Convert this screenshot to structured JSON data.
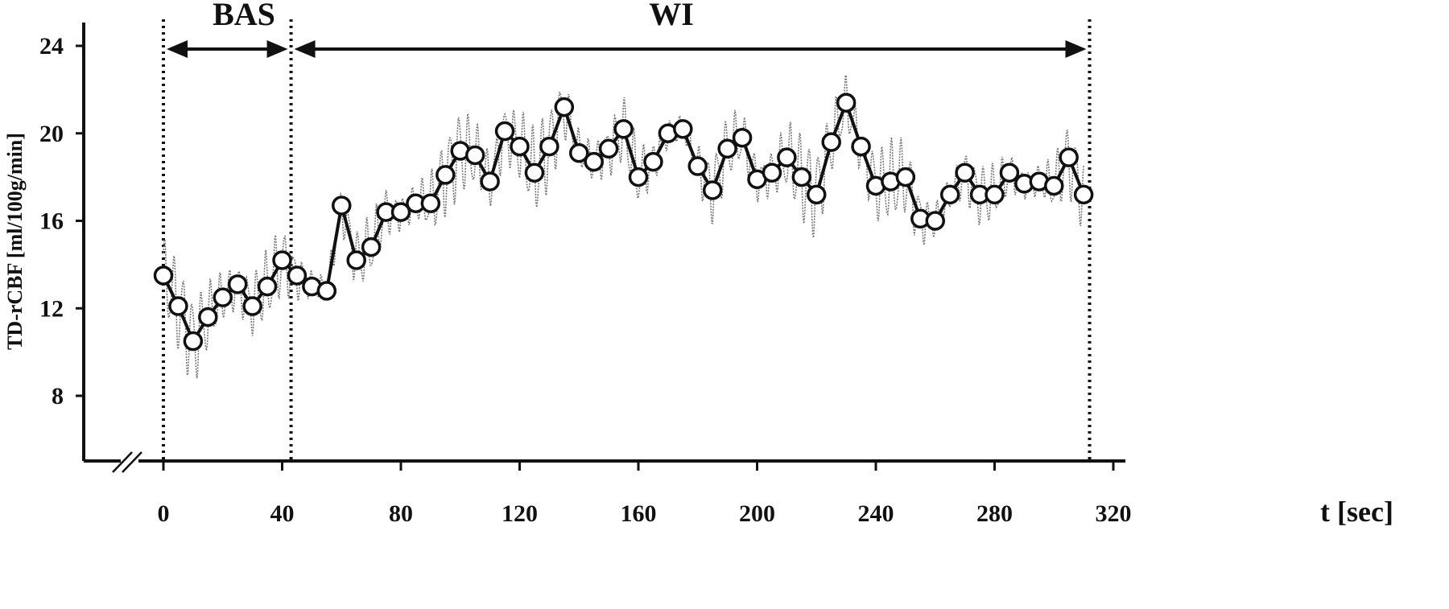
{
  "chart_data": {
    "type": "line",
    "title": "",
    "xlabel": "t [sec]",
    "ylabel": "TD-rCBF [ml/100g/min]",
    "xlim": [
      -30,
      325
    ],
    "ylim": [
      5,
      25
    ],
    "x_ticks": [
      0,
      40,
      80,
      120,
      160,
      200,
      240,
      280,
      320
    ],
    "y_ticks": [
      8,
      12,
      16,
      20,
      24
    ],
    "axis_break": "x",
    "grid": false,
    "phases": [
      {
        "label": "BAS",
        "start": 0,
        "end": 43
      },
      {
        "label": "WI",
        "start": 43,
        "end": 312
      }
    ],
    "boundaries_x": [
      0,
      43,
      312
    ],
    "series": [
      {
        "role": "averaged",
        "style": "thick line with open circle markers",
        "x": [
          0,
          5,
          10,
          15,
          20,
          25,
          30,
          35,
          40,
          45,
          50,
          55,
          60,
          65,
          70,
          75,
          80,
          85,
          90,
          95,
          100,
          105,
          110,
          115,
          120,
          125,
          130,
          135,
          140,
          145,
          150,
          155,
          160,
          165,
          170,
          175,
          180,
          185,
          190,
          195,
          200,
          205,
          210,
          215,
          220,
          225,
          230,
          235,
          240,
          245,
          250,
          255,
          260,
          265,
          270,
          275,
          280,
          285,
          290,
          295,
          300,
          305,
          310
        ],
        "values": [
          13.5,
          12.1,
          10.5,
          11.6,
          12.5,
          13.1,
          12.1,
          13.0,
          14.2,
          13.5,
          13.0,
          12.8,
          16.7,
          14.2,
          14.8,
          16.4,
          16.4,
          16.8,
          16.8,
          18.1,
          19.2,
          19.0,
          17.8,
          20.1,
          19.4,
          18.2,
          19.4,
          21.2,
          19.1,
          18.7,
          19.3,
          20.2,
          18.0,
          18.7,
          20.0,
          20.2,
          18.5,
          17.4,
          19.3,
          19.8,
          17.9,
          18.2,
          18.9,
          18.0,
          17.2,
          19.6,
          21.4,
          19.4,
          17.6,
          17.8,
          18.0,
          16.1,
          16.0,
          17.2,
          18.2,
          17.2,
          17.2,
          18.2,
          17.7,
          17.8,
          17.6,
          18.9,
          17.2
        ]
      },
      {
        "role": "raw",
        "style": "thin dotted grey oscillating signal"
      }
    ]
  }
}
